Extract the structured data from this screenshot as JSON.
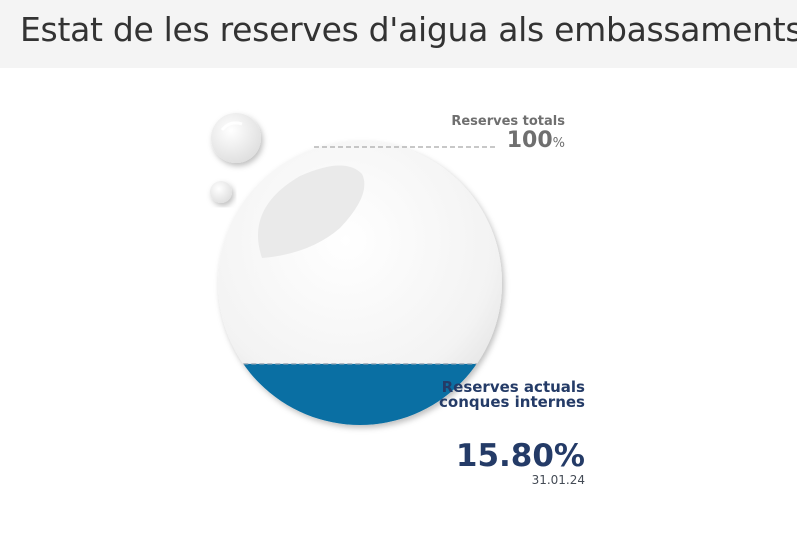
{
  "header": {
    "title": "Estat de les reserves d'aigua als embassaments"
  },
  "reserves": {
    "total_label": "Reserves totals",
    "total_value": "100",
    "total_unit": "%",
    "current_label": "Reserves actuals conques internes",
    "current_value": "15.80%",
    "current_fraction": 0.158,
    "date": "31.01.24"
  },
  "colors": {
    "water": "#0a6fa3",
    "label_dark": "#243b67",
    "label_grey": "#6f6f6f"
  }
}
